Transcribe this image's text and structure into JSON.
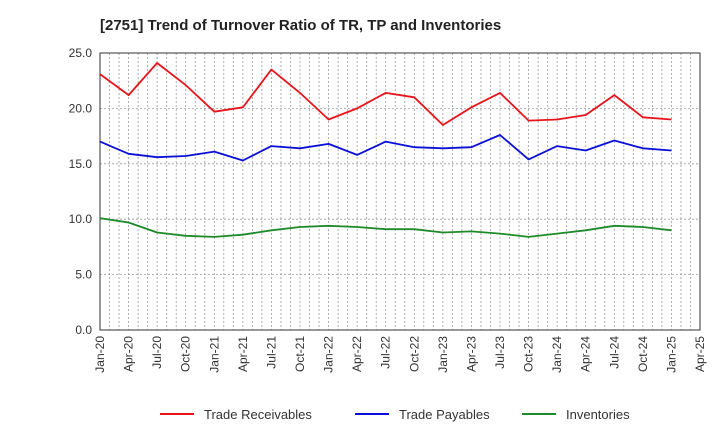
{
  "chart_data": {
    "type": "line",
    "title": "[2751]  Trend of Turnover Ratio of TR, TP and Inventories",
    "xlabel": "",
    "ylabel": "",
    "ylim": [
      0,
      25
    ],
    "yticks": [
      "0.0",
      "5.0",
      "10.0",
      "15.0",
      "20.0",
      "25.0"
    ],
    "categories": [
      "Jan-20",
      "Apr-20",
      "Jul-20",
      "Oct-20",
      "Jan-21",
      "Apr-21",
      "Jul-21",
      "Oct-21",
      "Jan-22",
      "Apr-22",
      "Jul-22",
      "Oct-22",
      "Jan-23",
      "Apr-23",
      "Jul-23",
      "Oct-23",
      "Jan-24",
      "Apr-24",
      "Jul-24",
      "Oct-24",
      "Jan-25",
      "Apr-25"
    ],
    "grid": true,
    "legend_position": "bottom",
    "series": [
      {
        "name": "Trade Receivables",
        "color": "#e8141b",
        "values": [
          23.1,
          21.2,
          24.1,
          22.1,
          19.7,
          20.1,
          23.5,
          21.4,
          19.0,
          20.0,
          21.4,
          21.0,
          18.5,
          20.1,
          21.4,
          18.9,
          19.0,
          19.4,
          21.2,
          19.2,
          19.0,
          null
        ]
      },
      {
        "name": "Trade Payables",
        "color": "#0a10d6",
        "values": [
          17.0,
          15.9,
          15.6,
          15.7,
          16.1,
          15.3,
          16.6,
          16.4,
          16.8,
          15.8,
          17.0,
          16.5,
          16.4,
          16.5,
          17.6,
          15.4,
          16.6,
          16.2,
          17.1,
          16.4,
          16.2,
          null
        ]
      },
      {
        "name": "Inventories",
        "color": "#1f8a2a",
        "values": [
          10.1,
          9.7,
          8.8,
          8.5,
          8.4,
          8.6,
          9.0,
          9.3,
          9.4,
          9.3,
          9.1,
          9.1,
          8.8,
          8.9,
          8.7,
          8.4,
          8.7,
          9.0,
          9.4,
          9.3,
          9.0,
          null
        ]
      }
    ]
  }
}
